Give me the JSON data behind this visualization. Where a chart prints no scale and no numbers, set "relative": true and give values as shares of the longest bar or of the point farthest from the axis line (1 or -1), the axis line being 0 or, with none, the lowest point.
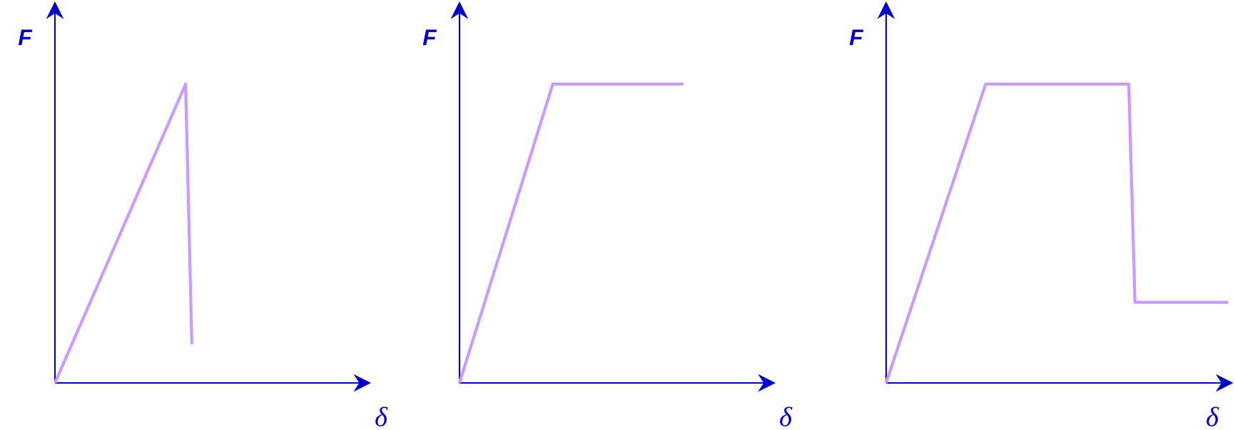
{
  "chart_data": [
    {
      "type": "line",
      "relative": true,
      "xlabel": "δ",
      "ylabel": "F",
      "color": "#cc99ff",
      "categories": [
        null,
        null,
        null,
        null,
        null,
        null,
        null,
        null,
        null,
        null,
        null,
        null,
        null,
        null,
        null,
        null,
        null,
        null,
        null,
        null,
        null,
        null,
        null,
        null,
        null,
        null,
        null,
        null,
        null,
        null,
        null,
        null,
        null,
        null,
        null,
        null,
        null,
        null,
        null,
        null,
        null,
        null,
        null,
        null,
        null,
        null,
        null,
        null,
        null,
        null,
        null
      ],
      "values": [
        0,
        null,
        null,
        null,
        null,
        null,
        null,
        null,
        null,
        null,
        null,
        null,
        null,
        null,
        null,
        null,
        null,
        null,
        null,
        null,
        null,
        1,
        0.13,
        null,
        null,
        null,
        null,
        null,
        null,
        null,
        null,
        null,
        null,
        null,
        null,
        null,
        null,
        null,
        null,
        null,
        null,
        null,
        null,
        null,
        null,
        null,
        null,
        null,
        null,
        null,
        null
      ]
    },
    {
      "type": "line",
      "relative": true,
      "xlabel": "δ",
      "ylabel": "F",
      "color": "#cc99ff",
      "categories": [
        null,
        null,
        null,
        null,
        null,
        null,
        null,
        null,
        null,
        null,
        null,
        null,
        null,
        null,
        null,
        null,
        null,
        null,
        null,
        null,
        null,
        null,
        null,
        null,
        null,
        null,
        null,
        null,
        null,
        null,
        null,
        null,
        null,
        null,
        null,
        null,
        null,
        null,
        null,
        null,
        null,
        null,
        null,
        null,
        null,
        null,
        null,
        null,
        null,
        null,
        null
      ],
      "values": [
        0,
        null,
        null,
        null,
        null,
        null,
        null,
        null,
        null,
        null,
        null,
        null,
        null,
        null,
        null,
        1,
        null,
        null,
        null,
        null,
        null,
        null,
        null,
        null,
        null,
        null,
        null,
        null,
        null,
        null,
        null,
        null,
        null,
        null,
        null,
        null,
        1,
        null,
        null,
        null,
        null,
        null,
        null,
        null,
        null,
        null,
        null,
        null,
        null,
        null,
        null
      ]
    },
    {
      "type": "line",
      "relative": true,
      "xlabel": "δ",
      "ylabel": "F",
      "color": "#cc99ff",
      "categories": [
        null,
        null,
        null,
        null,
        null,
        null,
        null,
        null,
        null,
        null,
        null,
        null,
        null,
        null,
        null,
        null,
        null,
        null,
        null,
        null,
        null,
        null,
        null,
        null,
        null,
        null,
        null,
        null,
        null,
        null,
        null,
        null,
        null,
        null,
        null,
        null,
        null,
        null,
        null,
        null,
        null,
        null,
        null,
        null,
        null,
        null,
        null,
        null,
        null,
        null,
        null,
        null,
        null,
        null,
        null,
        null
      ],
      "values": [
        0,
        null,
        null,
        null,
        null,
        null,
        null,
        null,
        null,
        null,
        null,
        null,
        null,
        null,
        null,
        null,
        1,
        null,
        null,
        null,
        null,
        null,
        null,
        null,
        null,
        null,
        null,
        null,
        null,
        null,
        null,
        null,
        null,
        null,
        null,
        null,
        null,
        null,
        null,
        1,
        0.27,
        null,
        null,
        null,
        null,
        null,
        null,
        null,
        null,
        null,
        null,
        null,
        null,
        null,
        null,
        0.27
      ]
    }
  ]
}
